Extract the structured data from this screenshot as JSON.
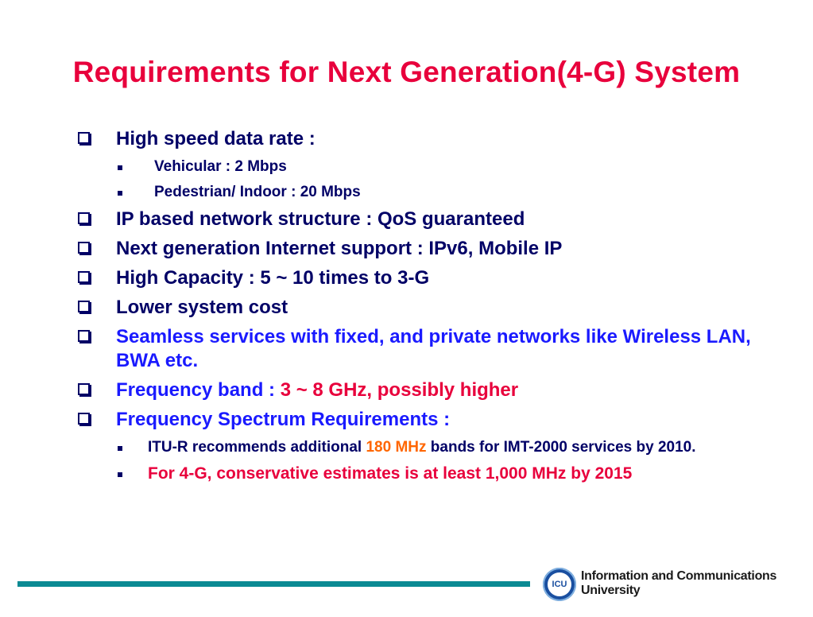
{
  "slide": {
    "title": "Requirements for Next Generation(4-G) System"
  },
  "bullets": {
    "speed": {
      "label": "High speed data rate :",
      "sub": [
        {
          "text": "Vehicular  :  2 Mbps"
        },
        {
          "text": "Pedestrian/ Indoor :  20 Mbps"
        }
      ]
    },
    "ip": "IP based network structure :   QoS guaranteed",
    "internet": "Next generation Internet support : IPv6, Mobile IP",
    "capacity": "High Capacity : 5 ~ 10 times to 3-G",
    "cost": "Lower system cost",
    "seamless": "Seamless  services with fixed, and private networks like Wireless LAN, BWA etc.",
    "frequency_band": {
      "label": "Frequency band :",
      "value": "3 ~ 8 GHz, possibly higher"
    },
    "spectrum": {
      "label": "Frequency Spectrum Requirements :",
      "itu": {
        "prefix": "ITU-R recommends  additional",
        "highlight": "180 MHz",
        "suffix": "bands for IMT-2000 services by 2010."
      },
      "estimate": "For 4-G, conservative estimates is at least 1,000 MHz by 2015"
    }
  },
  "footer": {
    "logo_text": "ICU",
    "university_line1": "Information and Communications",
    "university_line2": "University"
  },
  "colors": {
    "title": "#e8003c",
    "text_navy": "#000066",
    "text_blue": "#1a1aff",
    "text_red": "#e8003c",
    "text_orange": "#ff6600",
    "footer_bar": "#0b8a93"
  }
}
